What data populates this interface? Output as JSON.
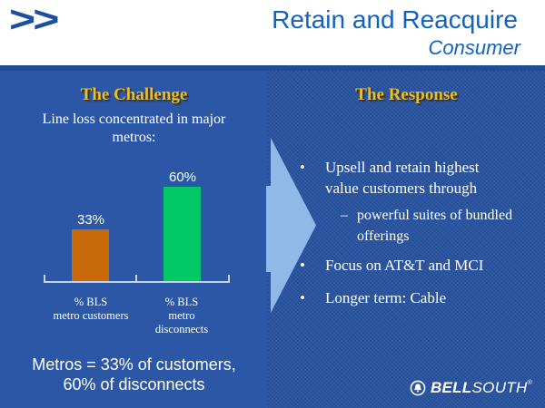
{
  "header": {
    "logo_glyph": ">>",
    "title": "Retain and Reacquire",
    "subtitle": "Consumer"
  },
  "challenge": {
    "heading": "The Challenge",
    "intro_lines": [
      "Line loss concentrated in major",
      "metros:"
    ],
    "summary_lines": [
      "Metros = 33% of customers,",
      "60% of disconnects"
    ]
  },
  "chart_data": {
    "type": "bar",
    "categories": [
      "% BLS metro customers",
      "% BLS metro disconnects"
    ],
    "categories_lines": [
      [
        "% BLS",
        "metro customers"
      ],
      [
        "% BLS",
        "metro",
        "disconnects"
      ]
    ],
    "values": [
      33,
      60
    ],
    "value_labels": [
      "33%",
      "60%"
    ],
    "bar_colors": [
      "#C8690A",
      "#00C864"
    ],
    "title": "",
    "xlabel": "",
    "ylabel": "",
    "ylim": [
      0,
      65
    ],
    "grid": false,
    "legend": false
  },
  "response": {
    "heading": "The Response",
    "bullets": [
      {
        "level": 1,
        "text": "Upsell and retain highest value customers through"
      },
      {
        "level": 2,
        "text": "powerful suites of bundled offerings"
      },
      {
        "level": 1,
        "text": "Focus on AT&T and MCI"
      },
      {
        "level": 1,
        "text": "Longer term: Cable"
      }
    ]
  },
  "ui": {
    "bullet_marker": "•",
    "sub_bullet_marker": "–"
  },
  "logo": {
    "brand_bold": "BELL",
    "brand_light": "SOUTH",
    "registered": "®"
  },
  "colors": {
    "title_blue": "#1262C4",
    "divider_navy": "#1F4D93",
    "panel_left_blue": "#2B57A6",
    "panel_right_blue": "#2A55A0",
    "heading_gold": "#E9BF25",
    "arrow_light_blue": "#8FBAE8",
    "logo_navy": "#1E4F9C",
    "bar_orange": "#C8690A",
    "bar_green": "#00C864"
  }
}
